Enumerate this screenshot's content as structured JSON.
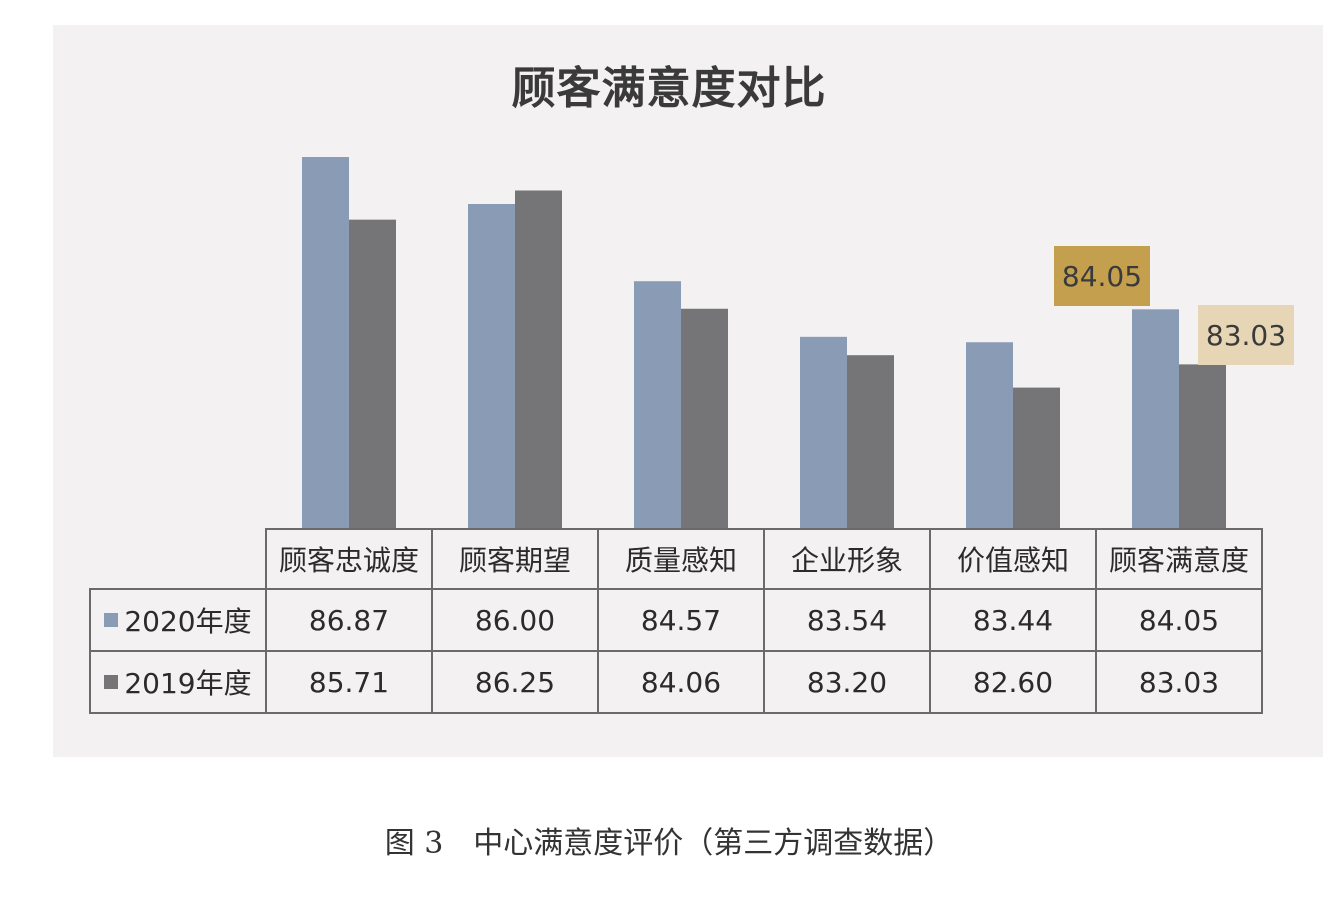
{
  "chart_data": {
    "type": "bar",
    "title": "顾客满意度对比",
    "categories": [
      "顾客忠诚度",
      "顾客期望",
      "质量感知",
      "企业形象",
      "价值感知",
      "顾客满意度"
    ],
    "series": [
      {
        "name": "2020年度",
        "values": [
          86.87,
          86.0,
          84.57,
          83.54,
          83.44,
          84.05
        ],
        "color": "#8a9cb5"
      },
      {
        "name": "2019年度",
        "values": [
          85.71,
          86.25,
          84.06,
          83.2,
          82.6,
          83.03
        ],
        "color": "#757476"
      }
    ],
    "ylim": [
      80.0,
      87.0
    ],
    "grid": false,
    "data_table": true,
    "highlight_labels": [
      {
        "series": "2020年度",
        "category": "顾客满意度",
        "text": "84.05",
        "color": "#c4a04e"
      },
      {
        "series": "2019年度",
        "category": "顾客满意度",
        "text": "83.03",
        "color": "#e7d6b5"
      }
    ]
  },
  "table": {
    "rows": [
      {
        "label": "2020年度",
        "cells": [
          "86.87",
          "86.00",
          "84.57",
          "83.54",
          "83.44",
          "84.05"
        ]
      },
      {
        "label": "2019年度",
        "cells": [
          "85.71",
          "86.25",
          "84.06",
          "83.20",
          "82.60",
          "83.03"
        ]
      }
    ]
  },
  "caption": "图 3　中心满意度评价（第三方调查数据）",
  "colors": {
    "panel_bg": "#f3f1f1",
    "bar_2020": "#8a9cb5",
    "bar_2019": "#757476"
  }
}
